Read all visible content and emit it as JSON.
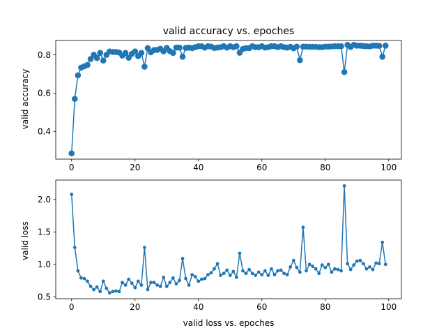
{
  "chart_data": [
    {
      "type": "line",
      "title": "valid accuracy vs. epoches",
      "xlabel": "",
      "ylabel": "valid accuracy",
      "xlim": [
        -5,
        104
      ],
      "ylim": [
        0.255,
        0.875
      ],
      "xticks": [
        0,
        20,
        40,
        60,
        80,
        100
      ],
      "yticks": [
        0.4,
        0.6,
        0.8
      ],
      "ytick_labels": [
        "0.4",
        "0.6",
        "0.8"
      ],
      "marker": "large-circle",
      "color": "#1f77b4",
      "grid": false,
      "x": [
        0,
        1,
        2,
        3,
        4,
        5,
        6,
        7,
        8,
        9,
        10,
        11,
        12,
        13,
        14,
        15,
        16,
        17,
        18,
        19,
        20,
        21,
        22,
        23,
        24,
        25,
        26,
        27,
        28,
        29,
        30,
        31,
        32,
        33,
        34,
        35,
        36,
        37,
        38,
        39,
        40,
        41,
        42,
        43,
        44,
        45,
        46,
        47,
        48,
        49,
        50,
        51,
        52,
        53,
        54,
        55,
        56,
        57,
        58,
        59,
        60,
        61,
        62,
        63,
        64,
        65,
        66,
        67,
        68,
        69,
        70,
        71,
        72,
        73,
        74,
        75,
        76,
        77,
        78,
        79,
        80,
        81,
        82,
        83,
        84,
        85,
        86,
        87,
        88,
        89,
        90,
        91,
        92,
        93,
        94,
        95,
        96,
        97,
        98,
        99
      ],
      "series": [
        {
          "values": [
            0.285,
            0.57,
            0.693,
            0.733,
            0.74,
            0.747,
            0.778,
            0.8,
            0.783,
            0.81,
            0.77,
            0.8,
            0.818,
            0.815,
            0.815,
            0.812,
            0.796,
            0.81,
            0.785,
            0.805,
            0.818,
            0.793,
            0.81,
            0.738,
            0.835,
            0.813,
            0.825,
            0.826,
            0.832,
            0.818,
            0.836,
            0.819,
            0.81,
            0.838,
            0.838,
            0.79,
            0.836,
            0.838,
            0.835,
            0.84,
            0.845,
            0.845,
            0.838,
            0.845,
            0.843,
            0.836,
            0.838,
            0.84,
            0.845,
            0.838,
            0.845,
            0.84,
            0.845,
            0.811,
            0.831,
            0.835,
            0.835,
            0.845,
            0.84,
            0.84,
            0.845,
            0.838,
            0.84,
            0.845,
            0.845,
            0.84,
            0.845,
            0.84,
            0.838,
            0.842,
            0.834,
            0.843,
            0.772,
            0.843,
            0.843,
            0.842,
            0.842,
            0.842,
            0.84,
            0.84,
            0.843,
            0.843,
            0.844,
            0.845,
            0.845,
            0.845,
            0.71,
            0.852,
            0.841,
            0.852,
            0.848,
            0.848,
            0.846,
            0.845,
            0.844,
            0.848,
            0.848,
            0.847,
            0.79,
            0.848
          ]
        }
      ]
    },
    {
      "type": "line",
      "title": "",
      "xlabel": "valid loss vs. epoches",
      "ylabel": "valid loss",
      "xlim": [
        -5,
        104
      ],
      "ylim": [
        0.47,
        2.3
      ],
      "xticks": [
        0,
        20,
        40,
        60,
        80,
        100
      ],
      "yticks": [
        0.5,
        1.0,
        1.5,
        2.0
      ],
      "ytick_labels": [
        "0.5",
        "1.0",
        "1.5",
        "2.0"
      ],
      "marker": "small-circle",
      "color": "#1f77b4",
      "grid": false,
      "x": [
        0,
        1,
        2,
        3,
        4,
        5,
        6,
        7,
        8,
        9,
        10,
        11,
        12,
        13,
        14,
        15,
        16,
        17,
        18,
        19,
        20,
        21,
        22,
        23,
        24,
        25,
        26,
        27,
        28,
        29,
        30,
        31,
        32,
        33,
        34,
        35,
        36,
        37,
        38,
        39,
        40,
        41,
        42,
        43,
        44,
        45,
        46,
        47,
        48,
        49,
        50,
        51,
        52,
        53,
        54,
        55,
        56,
        57,
        58,
        59,
        60,
        61,
        62,
        63,
        64,
        65,
        66,
        67,
        68,
        69,
        70,
        71,
        72,
        73,
        74,
        75,
        76,
        77,
        78,
        79,
        80,
        81,
        82,
        83,
        84,
        85,
        86,
        87,
        88,
        89,
        90,
        91,
        92,
        93,
        94,
        95,
        96,
        97,
        98,
        99
      ],
      "series": [
        {
          "values": [
            2.08,
            1.26,
            0.9,
            0.79,
            0.78,
            0.74,
            0.66,
            0.61,
            0.65,
            0.58,
            0.74,
            0.63,
            0.56,
            0.58,
            0.59,
            0.58,
            0.72,
            0.68,
            0.77,
            0.71,
            0.64,
            0.74,
            0.68,
            1.26,
            0.61,
            0.72,
            0.72,
            0.68,
            0.66,
            0.8,
            0.66,
            0.72,
            0.79,
            0.7,
            0.75,
            1.09,
            0.78,
            0.68,
            0.84,
            0.81,
            0.74,
            0.77,
            0.78,
            0.84,
            0.87,
            0.93,
            1.01,
            0.83,
            0.86,
            0.91,
            0.83,
            0.89,
            0.8,
            1.17,
            0.9,
            0.86,
            0.92,
            0.86,
            0.83,
            0.88,
            0.84,
            0.9,
            0.83,
            0.93,
            0.84,
            0.9,
            0.91,
            0.86,
            0.84,
            0.96,
            1.06,
            0.95,
            0.88,
            1.57,
            0.9,
            1.0,
            0.97,
            0.93,
            0.86,
            0.99,
            0.95,
            1.0,
            0.88,
            0.93,
            0.92,
            0.9,
            2.21,
            1.01,
            0.92,
            0.99,
            1.05,
            1.06,
            1.01,
            0.93,
            0.96,
            0.92,
            1.02,
            1.01,
            1.34,
            1.0
          ]
        }
      ]
    }
  ]
}
